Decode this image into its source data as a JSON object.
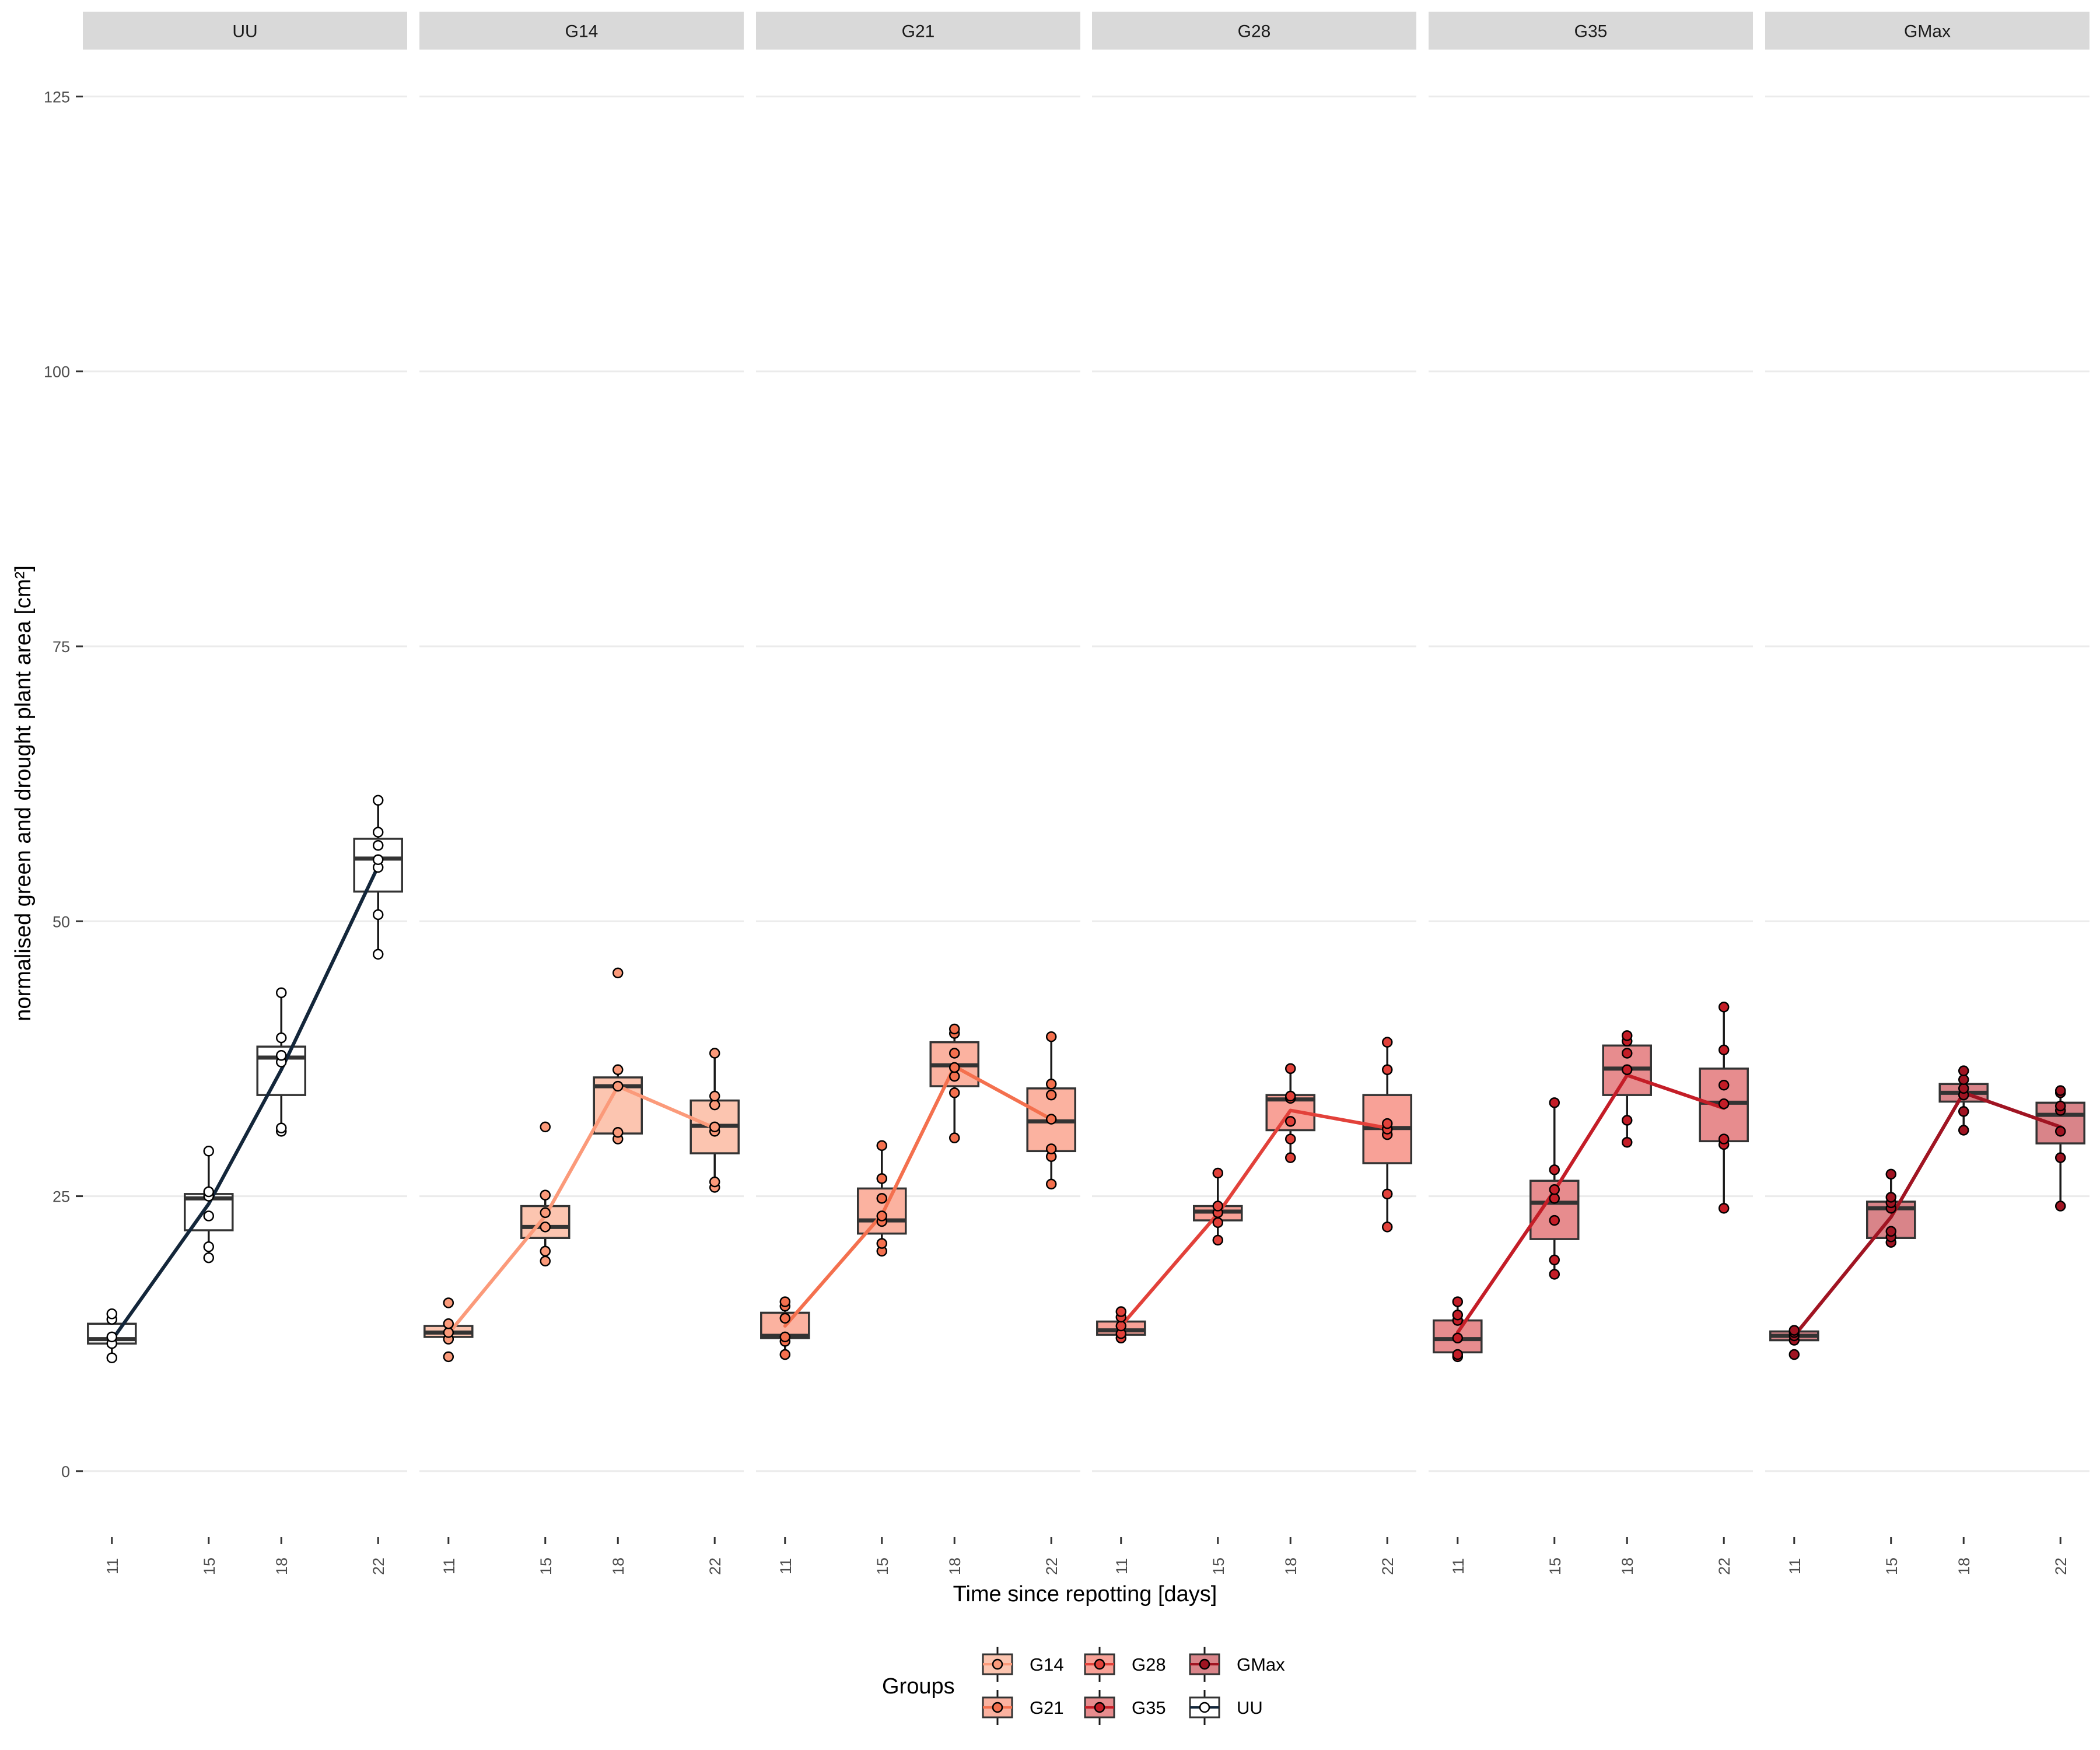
{
  "chart_data": {
    "type": "box",
    "xlabel": "Time since repotting [days]",
    "ylabel": "normalised green and drought plant area [cm²]",
    "ylim": [
      -6,
      129
    ],
    "yticks": [
      0,
      25,
      50,
      75,
      100,
      125
    ],
    "x_categories": [
      "11",
      "15",
      "18",
      "22"
    ],
    "x_values": [
      11,
      15,
      18,
      22
    ],
    "grid": "horizontal major lines",
    "legend": {
      "title": "Groups",
      "placement": "bottom",
      "entries": [
        "G14",
        "G21",
        "G28",
        "G35",
        "GMax",
        "UU"
      ]
    },
    "colors": {
      "G14": {
        "box": "#fcc5b0",
        "point": "#fb9a7a",
        "line": "#fb9a7a"
      },
      "G21": {
        "box": "#fbb2a0",
        "point": "#f4704e",
        "line": "#f4704e"
      },
      "G28": {
        "box": "#f8a197",
        "point": "#e2413a",
        "line": "#e2413a"
      },
      "G35": {
        "box": "#e78c8e",
        "point": "#c41d27",
        "line": "#c41d27"
      },
      "GMax": {
        "box": "#d98489",
        "point": "#a01422",
        "line": "#a01422"
      },
      "UU": {
        "box": "#ffffff",
        "point": "#ffffff",
        "line": "#13263a"
      }
    },
    "panels": [
      {
        "name": "UU",
        "trend": [
          11.9,
          24.3,
          36.5,
          55.0
        ],
        "boxes": [
          {
            "x": 11,
            "q1": 11.6,
            "median": 12.0,
            "q3": 13.4,
            "lower": 10.3,
            "upper": 14.3
          },
          {
            "x": 15,
            "q1": 21.9,
            "median": 24.8,
            "q3": 25.2,
            "lower": 19.4,
            "upper": 29.1
          },
          {
            "x": 18,
            "q1": 34.2,
            "median": 37.6,
            "q3": 38.6,
            "lower": 30.9,
            "upper": 43.5
          },
          {
            "x": 22,
            "q1": 52.7,
            "median": 55.7,
            "q3": 57.5,
            "lower": 47.0,
            "upper": 61.0
          }
        ],
        "points": [
          [
            11,
            10.3
          ],
          [
            11,
            11.6
          ],
          [
            11,
            12.2
          ],
          [
            11,
            13.8
          ],
          [
            11,
            14.3
          ],
          [
            15,
            19.4
          ],
          [
            15,
            20.4
          ],
          [
            15,
            23.2
          ],
          [
            15,
            25.0
          ],
          [
            15,
            25.4
          ],
          [
            15,
            29.1
          ],
          [
            18,
            30.9
          ],
          [
            18,
            31.2
          ],
          [
            18,
            37.2
          ],
          [
            18,
            37.8
          ],
          [
            18,
            39.4
          ],
          [
            18,
            43.5
          ],
          [
            22,
            47.0
          ],
          [
            22,
            50.6
          ],
          [
            22,
            54.9
          ],
          [
            22,
            55.6
          ],
          [
            22,
            56.9
          ],
          [
            22,
            58.1
          ],
          [
            22,
            61.0
          ]
        ]
      },
      {
        "name": "G14",
        "trend": [
          12.5,
          23.2,
          35.0,
          31.2
        ],
        "boxes": [
          {
            "x": 11,
            "q1": 12.2,
            "median": 12.6,
            "q3": 13.2,
            "lower": 12.0,
            "upper": 13.4
          },
          {
            "x": 15,
            "q1": 21.2,
            "median": 22.2,
            "q3": 24.1,
            "lower": 19.1,
            "upper": 25.2
          },
          {
            "x": 18,
            "q1": 30.7,
            "median": 35.0,
            "q3": 35.8,
            "lower": 30.2,
            "upper": 36.5
          },
          {
            "x": 22,
            "q1": 28.9,
            "median": 31.4,
            "q3": 33.7,
            "lower": 25.8,
            "upper": 38.0
          }
        ],
        "points": [
          [
            11,
            10.4
          ],
          [
            11,
            12.0
          ],
          [
            11,
            12.6
          ],
          [
            11,
            13.4
          ],
          [
            11,
            15.3
          ],
          [
            15,
            19.1
          ],
          [
            15,
            20.0
          ],
          [
            15,
            22.2
          ],
          [
            15,
            23.5
          ],
          [
            15,
            25.1
          ],
          [
            15,
            31.3
          ],
          [
            18,
            30.2
          ],
          [
            18,
            30.8
          ],
          [
            18,
            35.0
          ],
          [
            18,
            36.5
          ],
          [
            18,
            45.3
          ],
          [
            22,
            25.8
          ],
          [
            22,
            26.3
          ],
          [
            22,
            30.9
          ],
          [
            22,
            31.3
          ],
          [
            22,
            33.3
          ],
          [
            22,
            34.1
          ],
          [
            22,
            38.0
          ]
        ]
      },
      {
        "name": "G21",
        "trend": [
          13.2,
          23.3,
          36.8,
          32.0
        ],
        "boxes": [
          {
            "x": 11,
            "q1": 12.1,
            "median": 12.3,
            "q3": 14.4,
            "lower": 10.6,
            "upper": 15.4
          },
          {
            "x": 15,
            "q1": 21.6,
            "median": 22.8,
            "q3": 25.7,
            "lower": 20.0,
            "upper": 29.6
          },
          {
            "x": 18,
            "q1": 35.0,
            "median": 36.9,
            "q3": 39.0,
            "lower": 30.3,
            "upper": 40.2
          },
          {
            "x": 22,
            "q1": 29.1,
            "median": 31.8,
            "q3": 34.8,
            "lower": 26.1,
            "upper": 39.5
          }
        ],
        "points": [
          [
            11,
            10.6
          ],
          [
            11,
            11.8
          ],
          [
            11,
            12.2
          ],
          [
            11,
            13.9
          ],
          [
            11,
            15.0
          ],
          [
            11,
            15.4
          ],
          [
            15,
            20.0
          ],
          [
            15,
            20.7
          ],
          [
            15,
            22.7
          ],
          [
            15,
            23.2
          ],
          [
            15,
            24.8
          ],
          [
            15,
            26.6
          ],
          [
            15,
            29.6
          ],
          [
            18,
            30.3
          ],
          [
            18,
            34.4
          ],
          [
            18,
            35.9
          ],
          [
            18,
            36.7
          ],
          [
            18,
            38.0
          ],
          [
            18,
            39.8
          ],
          [
            18,
            40.2
          ],
          [
            22,
            26.1
          ],
          [
            22,
            28.6
          ],
          [
            22,
            29.3
          ],
          [
            22,
            32.0
          ],
          [
            22,
            34.2
          ],
          [
            22,
            35.2
          ],
          [
            22,
            39.5
          ]
        ]
      },
      {
        "name": "G28",
        "trend": [
          13.2,
          23.4,
          32.8,
          31.2
        ],
        "boxes": [
          {
            "x": 11,
            "q1": 12.4,
            "median": 12.8,
            "q3": 13.6,
            "lower": 12.1,
            "upper": 14.5
          },
          {
            "x": 15,
            "q1": 22.8,
            "median": 23.6,
            "q3": 24.1,
            "lower": 21.0,
            "upper": 27.1
          },
          {
            "x": 18,
            "q1": 31.0,
            "median": 33.8,
            "q3": 34.2,
            "lower": 28.5,
            "upper": 36.6
          },
          {
            "x": 22,
            "q1": 28.0,
            "median": 31.2,
            "q3": 34.2,
            "lower": 22.2,
            "upper": 39.0
          }
        ],
        "points": [
          [
            11,
            12.1
          ],
          [
            11,
            12.5
          ],
          [
            11,
            13.2
          ],
          [
            11,
            14.0
          ],
          [
            11,
            14.5
          ],
          [
            15,
            21.0
          ],
          [
            15,
            22.6
          ],
          [
            15,
            23.5
          ],
          [
            15,
            24.1
          ],
          [
            15,
            27.1
          ],
          [
            18,
            28.5
          ],
          [
            18,
            30.2
          ],
          [
            18,
            31.8
          ],
          [
            18,
            33.9
          ],
          [
            18,
            34.1
          ],
          [
            18,
            36.6
          ],
          [
            22,
            22.2
          ],
          [
            22,
            25.2
          ],
          [
            22,
            30.6
          ],
          [
            22,
            31.1
          ],
          [
            22,
            31.6
          ],
          [
            22,
            36.5
          ],
          [
            22,
            39.0
          ]
        ]
      },
      {
        "name": "G35",
        "trend": [
          12.6,
          25.5,
          36.0,
          33.0
        ],
        "boxes": [
          {
            "x": 11,
            "q1": 10.8,
            "median": 12.0,
            "q3": 13.7,
            "lower": 10.4,
            "upper": 15.4
          },
          {
            "x": 15,
            "q1": 21.1,
            "median": 24.4,
            "q3": 26.4,
            "lower": 17.9,
            "upper": 33.5
          },
          {
            "x": 18,
            "q1": 34.2,
            "median": 36.6,
            "q3": 38.7,
            "lower": 29.9,
            "upper": 39.6
          },
          {
            "x": 22,
            "q1": 30.0,
            "median": 33.5,
            "q3": 36.6,
            "lower": 23.9,
            "upper": 42.2
          }
        ],
        "points": [
          [
            11,
            10.4
          ],
          [
            11,
            10.6
          ],
          [
            11,
            12.1
          ],
          [
            11,
            13.7
          ],
          [
            11,
            14.2
          ],
          [
            11,
            15.4
          ],
          [
            15,
            17.9
          ],
          [
            15,
            19.2
          ],
          [
            15,
            22.8
          ],
          [
            15,
            24.8
          ],
          [
            15,
            25.6
          ],
          [
            15,
            27.4
          ],
          [
            15,
            33.5
          ],
          [
            18,
            29.9
          ],
          [
            18,
            31.9
          ],
          [
            18,
            36.5
          ],
          [
            18,
            38.0
          ],
          [
            18,
            39.1
          ],
          [
            18,
            39.6
          ],
          [
            22,
            23.9
          ],
          [
            22,
            29.7
          ],
          [
            22,
            30.2
          ],
          [
            22,
            33.4
          ],
          [
            22,
            35.1
          ],
          [
            22,
            38.3
          ],
          [
            22,
            42.2
          ]
        ]
      },
      {
        "name": "GMax",
        "trend": [
          12.3,
          23.1,
          34.4,
          31.3
        ],
        "boxes": [
          {
            "x": 11,
            "q1": 11.9,
            "median": 12.3,
            "q3": 12.7,
            "lower": 11.9,
            "upper": 12.8
          },
          {
            "x": 15,
            "q1": 21.2,
            "median": 23.9,
            "q3": 24.5,
            "lower": 20.8,
            "upper": 27.0
          },
          {
            "x": 18,
            "q1": 33.6,
            "median": 34.4,
            "q3": 35.2,
            "lower": 31.0,
            "upper": 36.4
          },
          {
            "x": 22,
            "q1": 29.8,
            "median": 32.4,
            "q3": 33.5,
            "lower": 24.1,
            "upper": 34.6
          }
        ],
        "points": [
          [
            11,
            10.6
          ],
          [
            11,
            11.9
          ],
          [
            11,
            12.3
          ],
          [
            11,
            12.6
          ],
          [
            11,
            12.8
          ],
          [
            15,
            20.8
          ],
          [
            15,
            21.3
          ],
          [
            15,
            21.8
          ],
          [
            15,
            23.9
          ],
          [
            15,
            24.4
          ],
          [
            15,
            24.9
          ],
          [
            15,
            27.0
          ],
          [
            18,
            31.0
          ],
          [
            18,
            32.7
          ],
          [
            18,
            34.2
          ],
          [
            18,
            34.8
          ],
          [
            18,
            35.6
          ],
          [
            18,
            36.4
          ],
          [
            22,
            24.1
          ],
          [
            22,
            28.5
          ],
          [
            22,
            30.9
          ],
          [
            22,
            32.8
          ],
          [
            22,
            33.2
          ],
          [
            22,
            34.4
          ],
          [
            22,
            34.6
          ]
        ]
      }
    ]
  }
}
